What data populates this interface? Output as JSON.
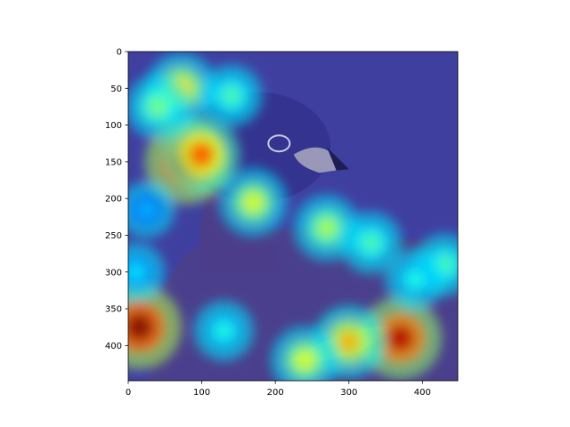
{
  "chart_data": {
    "type": "heatmap",
    "title": "",
    "xlabel": "",
    "ylabel": "",
    "xlim": [
      0,
      448
    ],
    "ylim": [
      448,
      0
    ],
    "x_ticks": [
      0,
      100,
      200,
      300,
      400
    ],
    "y_ticks": [
      0,
      50,
      100,
      150,
      200,
      250,
      300,
      350,
      400
    ],
    "x_tick_labels": [
      "0",
      "100",
      "200",
      "300",
      "400"
    ],
    "y_tick_labels": [
      "0",
      "50",
      "100",
      "150",
      "200",
      "250",
      "300",
      "350",
      "400"
    ],
    "grid": false,
    "legend": "none",
    "colormap": "jet",
    "background_image": "duck (pied-billed grebe) photo under heatmap overlay",
    "hotspots": [
      {
        "x": 80,
        "y": 150,
        "intensity": 1.0
      },
      {
        "x": 100,
        "y": 140,
        "intensity": 0.8
      },
      {
        "x": 72,
        "y": 50,
        "intensity": 0.65
      },
      {
        "x": 40,
        "y": 75,
        "intensity": 0.5
      },
      {
        "x": 140,
        "y": 60,
        "intensity": 0.45
      },
      {
        "x": 170,
        "y": 205,
        "intensity": 0.6
      },
      {
        "x": 15,
        "y": 375,
        "intensity": 1.0
      },
      {
        "x": 270,
        "y": 240,
        "intensity": 0.55
      },
      {
        "x": 330,
        "y": 260,
        "intensity": 0.45
      },
      {
        "x": 370,
        "y": 390,
        "intensity": 0.95
      },
      {
        "x": 300,
        "y": 395,
        "intensity": 0.7
      },
      {
        "x": 240,
        "y": 420,
        "intensity": 0.6
      },
      {
        "x": 430,
        "y": 290,
        "intensity": 0.45
      },
      {
        "x": 390,
        "y": 310,
        "intensity": 0.4
      },
      {
        "x": 130,
        "y": 380,
        "intensity": 0.4
      },
      {
        "x": 10,
        "y": 300,
        "intensity": 0.35
      },
      {
        "x": 25,
        "y": 215,
        "intensity": 0.3
      }
    ]
  }
}
